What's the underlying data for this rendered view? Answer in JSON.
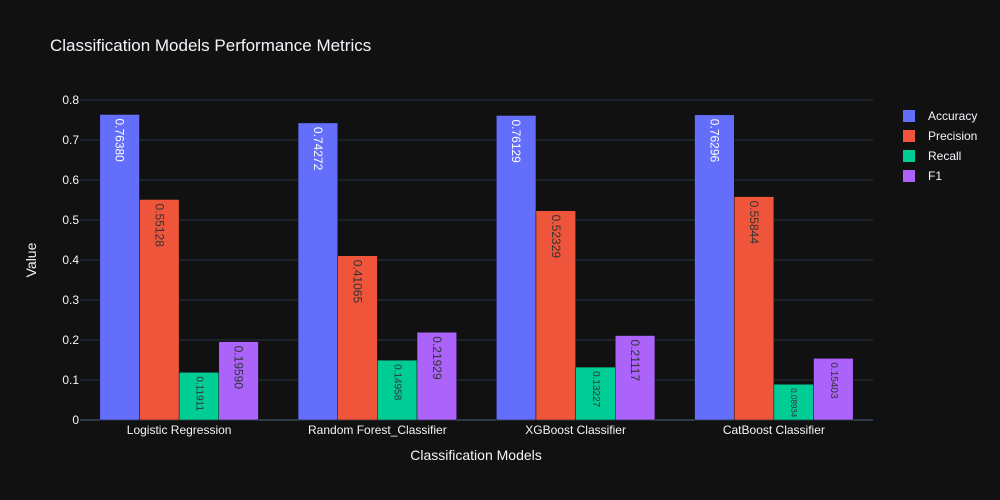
{
  "chart_data": {
    "type": "bar",
    "title": "Classification Models Performance Metrics",
    "xlabel": "Classification Models",
    "ylabel": "Value",
    "categories": [
      "Logistic Regression",
      "Random Forest_Classifier",
      "XGBoost Classifier",
      "CatBoost Classifier"
    ],
    "series": [
      {
        "name": "Accuracy",
        "color": "#636efa",
        "values": [
          0.7638,
          0.74272,
          0.76129,
          0.76296
        ],
        "labels": [
          "0.76380",
          "0.74272",
          "0.76129",
          "0.76296"
        ]
      },
      {
        "name": "Precision",
        "color": "#ef553b",
        "values": [
          0.55128,
          0.41065,
          0.52329,
          0.55844
        ],
        "labels": [
          "0.55128",
          "0.41065",
          "0.52329",
          "0.55844"
        ]
      },
      {
        "name": "Recall",
        "color": "#00cc96",
        "values": [
          0.11911,
          0.14958,
          0.13227,
          0.08934
        ],
        "labels": [
          "0.11911",
          "0.14958",
          "0.13227",
          "0.08934"
        ]
      },
      {
        "name": "F1",
        "color": "#ab63fa",
        "values": [
          0.1959,
          0.21929,
          0.21117,
          0.15403
        ],
        "labels": [
          "0.19590",
          "0.21929",
          "0.21117",
          "0.15403"
        ]
      }
    ],
    "ylim": [
      0,
      0.8
    ],
    "yticks": [
      "0",
      "0.1",
      "0.2",
      "0.3",
      "0.4",
      "0.5",
      "0.6",
      "0.7",
      "0.8"
    ],
    "grid": true,
    "legend_position": "top-right",
    "theme_colors": {
      "background": "#111111",
      "grid": "#283442",
      "text": "#f2f5fa"
    }
  }
}
